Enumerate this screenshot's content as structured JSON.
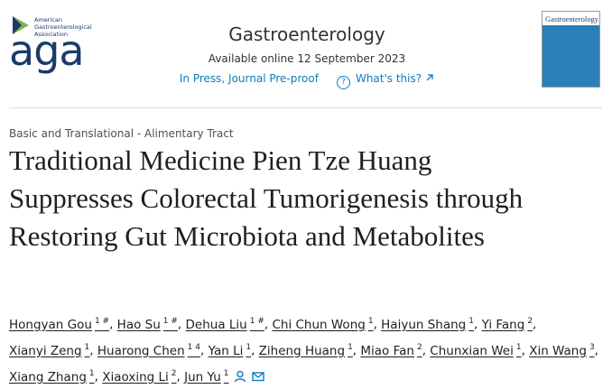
{
  "logo": {
    "small_lines": [
      "American",
      "Gastroenterological",
      "Association"
    ],
    "mark": "aga"
  },
  "journal": {
    "name": "Gastroenterology",
    "availability": "Available online 12 September 2023",
    "status": "In Press, Journal Pre-proof",
    "help": "What's this?"
  },
  "cover": {
    "title": "Gastroenterology"
  },
  "article": {
    "section": "Basic and Translational - Alimentary Tract",
    "title": "Traditional Medicine Pien Tze Huang Suppresses Colorectal Tumorigenesis through Restoring Gut Microbiota and Metabolites",
    "separator": ",",
    "authors": [
      {
        "name": "Hongyan Gou",
        "sup": "1 #"
      },
      {
        "name": "Hao Su",
        "sup": "1 #"
      },
      {
        "name": "Dehua Liu",
        "sup": "1 #"
      },
      {
        "name": "Chi Chun Wong",
        "sup": "1"
      },
      {
        "name": "Haiyun Shang",
        "sup": "1"
      },
      {
        "name": "Yi Fang",
        "sup": "2"
      },
      {
        "name": "Xianyi Zeng",
        "sup": "1"
      },
      {
        "name": "Huarong Chen",
        "sup": "1 4"
      },
      {
        "name": "Yan Li",
        "sup": "1"
      },
      {
        "name": "Ziheng Huang",
        "sup": "1"
      },
      {
        "name": "Miao Fan",
        "sup": "2"
      },
      {
        "name": "Chunxian Wei",
        "sup": "1"
      },
      {
        "name": "Xin Wang",
        "sup": "3"
      },
      {
        "name": "Xiang Zhang",
        "sup": "1"
      },
      {
        "name": "Xiaoxing Li",
        "sup": "2"
      },
      {
        "name": "Jun Yu",
        "sup": "1"
      }
    ]
  }
}
